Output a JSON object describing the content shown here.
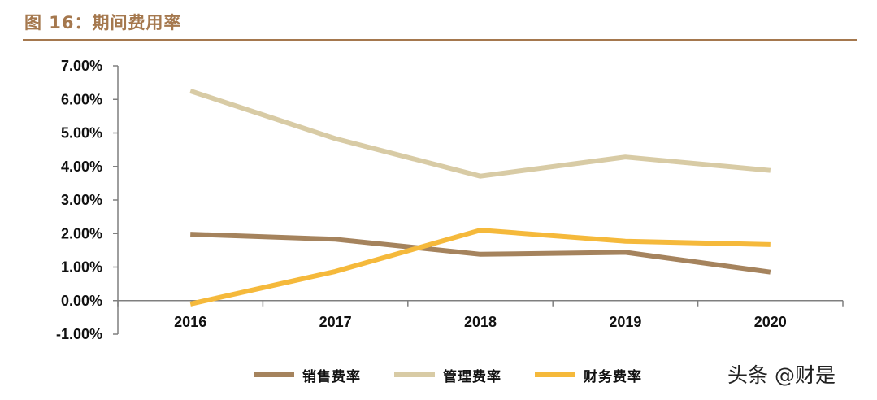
{
  "figure": {
    "title": "图 16：期间费用率"
  },
  "watermark": "头条 @财是",
  "colors": {
    "title": "#a5784e",
    "axis": "#7f7f7f"
  },
  "chart_data": {
    "type": "line",
    "title": "图 16：期间费用率",
    "xlabel": "",
    "ylabel": "",
    "categories": [
      "2016",
      "2017",
      "2018",
      "2019",
      "2020"
    ],
    "ylim": [
      -0.01,
      0.07
    ],
    "yticks": [
      "7.00%",
      "6.00%",
      "5.00%",
      "4.00%",
      "3.00%",
      "2.00%",
      "1.00%",
      "0.00%",
      "-1.00%"
    ],
    "ytick_values": [
      0.07,
      0.06,
      0.05,
      0.04,
      0.03,
      0.02,
      0.01,
      0.0,
      -0.01
    ],
    "grid": false,
    "legend_position": "bottom-center",
    "series": [
      {
        "name": "销售费率",
        "color": "#a5835d",
        "values": [
          0.0198,
          0.0183,
          0.0138,
          0.0144,
          0.0085
        ]
      },
      {
        "name": "管理费率",
        "color": "#d8cba5",
        "values": [
          0.0625,
          0.0483,
          0.0371,
          0.0428,
          0.0388
        ]
      },
      {
        "name": "财务费率",
        "color": "#f5b93b",
        "values": [
          -0.001,
          0.0087,
          0.021,
          0.0177,
          0.0167
        ]
      }
    ]
  }
}
